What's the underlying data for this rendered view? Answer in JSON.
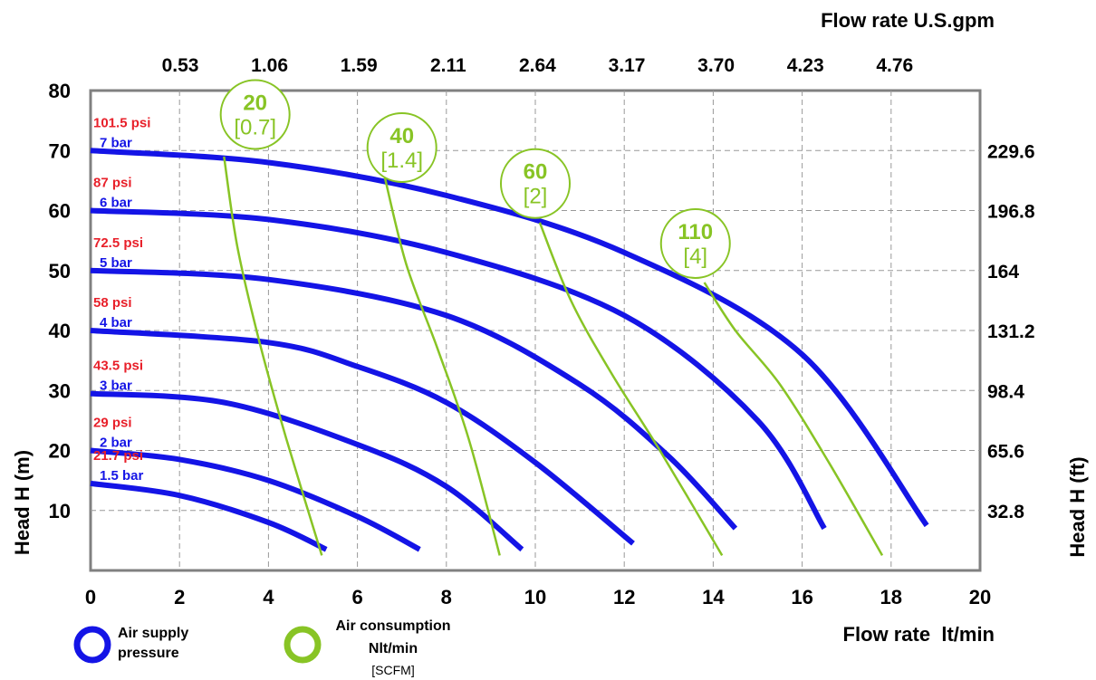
{
  "chart_data": {
    "type": "line",
    "title": "",
    "top_axis_title": "Flow rate U.S.gpm",
    "top_ticks": [
      "0.53",
      "1.06",
      "1.59",
      "2.11",
      "2.64",
      "3.17",
      "3.70",
      "4.23",
      "4.76"
    ],
    "xlabel": "Flow rate  lt/min",
    "ylabel_left": "Head H (m)",
    "ylabel_right": "Head H (ft)",
    "xlim": [
      0,
      20
    ],
    "ylim": [
      0,
      80
    ],
    "x_ticks": [
      "0",
      "2",
      "4",
      "6",
      "8",
      "10",
      "12",
      "14",
      "16",
      "18",
      "20"
    ],
    "y_ticks": [
      "10",
      "20",
      "30",
      "40",
      "50",
      "60",
      "70",
      "80"
    ],
    "right_ticks": [
      {
        "y": 10,
        "label": "32.8"
      },
      {
        "y": 20,
        "label": "65.6"
      },
      {
        "y": 30,
        "label": "98.4"
      },
      {
        "y": 40,
        "label": "131.2"
      },
      {
        "y": 50,
        "label": "164"
      },
      {
        "y": 60,
        "label": "196.8"
      },
      {
        "y": 70,
        "label": "229.6"
      }
    ],
    "grid": true,
    "pressure_color": "#1414e6",
    "consumption_color": "#88c425",
    "psi_label_color": "#e8202a",
    "pressure_series": [
      {
        "bar": "7 bar",
        "psi": "101.5 psi",
        "points": [
          [
            0,
            70
          ],
          [
            4,
            68
          ],
          [
            8,
            62.5
          ],
          [
            12,
            53
          ],
          [
            16,
            36
          ],
          [
            18.8,
            7.5
          ]
        ]
      },
      {
        "bar": "6 bar",
        "psi": "87 psi",
        "points": [
          [
            0,
            60
          ],
          [
            4,
            58.5
          ],
          [
            8,
            53
          ],
          [
            12,
            42.5
          ],
          [
            15,
            25
          ],
          [
            16.5,
            7
          ]
        ]
      },
      {
        "bar": "5 bar",
        "psi": "72.5 psi",
        "points": [
          [
            0,
            50
          ],
          [
            4,
            48.5
          ],
          [
            8,
            42.5
          ],
          [
            11,
            31
          ],
          [
            13,
            19
          ],
          [
            14.5,
            7
          ]
        ]
      },
      {
        "bar": "4 bar",
        "psi": "58 psi",
        "points": [
          [
            0,
            40
          ],
          [
            4,
            38
          ],
          [
            6,
            34
          ],
          [
            8,
            28
          ],
          [
            10,
            18
          ],
          [
            12.2,
            4.5
          ]
        ]
      },
      {
        "bar": "3 bar",
        "psi": "43.5 psi",
        "points": [
          [
            0,
            29.5
          ],
          [
            3,
            28
          ],
          [
            6,
            21
          ],
          [
            8,
            14
          ],
          [
            9.7,
            3.5
          ]
        ]
      },
      {
        "bar": "2 bar",
        "psi": "29 psi",
        "points": [
          [
            0,
            20
          ],
          [
            2,
            18.5
          ],
          [
            4,
            15
          ],
          [
            6,
            9
          ],
          [
            7.4,
            3.5
          ]
        ]
      },
      {
        "bar": "1.5 bar",
        "psi": "21.7 psi",
        "points": [
          [
            0,
            14.5
          ],
          [
            2,
            12.5
          ],
          [
            4,
            8
          ],
          [
            5.3,
            3.5
          ]
        ]
      }
    ],
    "consumption_series": [
      {
        "value": "20",
        "scfm": "[0.7]",
        "label_at": [
          3.7,
          76
        ],
        "points": [
          [
            3.0,
            69
          ],
          [
            3.3,
            54
          ],
          [
            3.8,
            38
          ],
          [
            4.4,
            22
          ],
          [
            5.2,
            2.5
          ]
        ]
      },
      {
        "value": "40",
        "scfm": "[1.4]",
        "label_at": [
          7.0,
          70.5
        ],
        "points": [
          [
            6.6,
            66
          ],
          [
            7.1,
            51
          ],
          [
            7.8,
            37
          ],
          [
            8.5,
            22
          ],
          [
            9.2,
            2.5
          ]
        ]
      },
      {
        "value": "60",
        "scfm": "[2]",
        "label_at": [
          10.0,
          64.5
        ],
        "points": [
          [
            10.1,
            58
          ],
          [
            10.8,
            45
          ],
          [
            11.7,
            33
          ],
          [
            12.8,
            20
          ],
          [
            14.2,
            2.5
          ]
        ]
      },
      {
        "value": "110",
        "scfm": "[4]",
        "label_at": [
          13.6,
          54.5
        ],
        "points": [
          [
            13.8,
            48
          ],
          [
            14.5,
            40
          ],
          [
            15.5,
            31
          ],
          [
            16.6,
            18
          ],
          [
            17.8,
            2.5
          ]
        ]
      }
    ]
  },
  "legend": {
    "pressure_label_line1": "Air supply",
    "pressure_label_line2": "pressure",
    "consumption_label_line1": "Air consumption",
    "consumption_label_line2": "Nlt/min",
    "consumption_label_line3": "[SCFM]"
  }
}
